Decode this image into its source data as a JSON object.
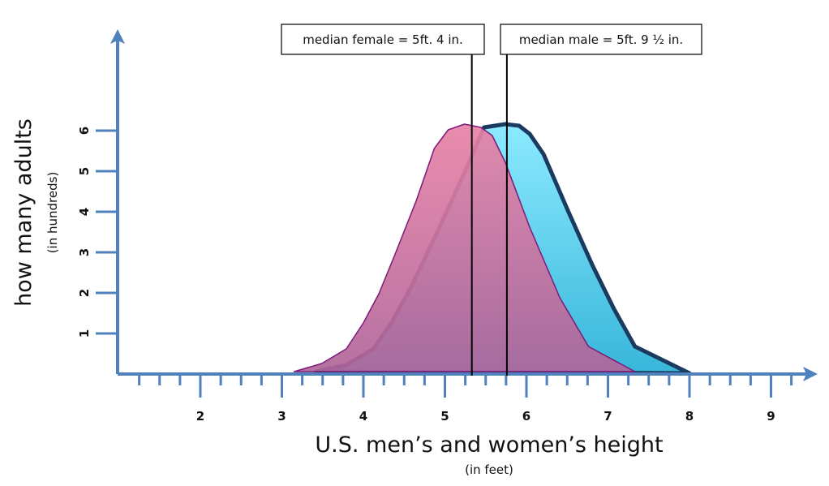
{
  "chart_data": {
    "type": "area",
    "xlabel": "U.S. men’s and women’s height",
    "xlabel_sub": "(in feet)",
    "ylabel": "how many adults",
    "ylabel_sub": "(in hundreds)",
    "xlim": [
      1,
      9.5
    ],
    "ylim": [
      0,
      6
    ],
    "x_ticks": [
      "2",
      "3",
      "4",
      "5",
      "6",
      "7",
      "8",
      "9"
    ],
    "y_ticks": [
      "1",
      "2",
      "3",
      "4",
      "5",
      "6"
    ],
    "grid": false,
    "series": [
      {
        "key": "male",
        "color": "#4cc6e6",
        "stroke": "#1b3a60",
        "x": [
          3.42,
          3.79,
          4.12,
          4.35,
          4.59,
          4.92,
          5.24,
          5.48,
          5.74,
          5.91,
          6.04,
          6.21,
          6.51,
          6.81,
          7.07,
          7.33,
          8.0
        ],
        "y": [
          0.06,
          0.22,
          0.62,
          1.28,
          2.16,
          3.56,
          4.96,
          6.08,
          6.16,
          6.12,
          5.92,
          5.42,
          4.02,
          2.68,
          1.62,
          0.68,
          0.02
        ]
      },
      {
        "key": "female",
        "color": "#e07aa0",
        "stroke": "#7a1a7a",
        "x": [
          3.15,
          3.49,
          3.79,
          4.0,
          4.19,
          4.39,
          4.65,
          4.87,
          5.04,
          5.24,
          5.44,
          5.58,
          5.74,
          6.04,
          6.41,
          6.76,
          7.33
        ],
        "y": [
          0.06,
          0.26,
          0.62,
          1.26,
          1.98,
          2.96,
          4.28,
          5.56,
          6.02,
          6.16,
          6.08,
          5.88,
          5.22,
          3.62,
          1.88,
          0.68,
          0.06
        ]
      }
    ],
    "annotations": [
      {
        "label": "median female = 5ft. 4 in.",
        "x": 5.33
      },
      {
        "label": "median male = 5ft. 9 ½ in.",
        "x": 5.76
      }
    ],
    "axis_color": "#4f81bd"
  }
}
